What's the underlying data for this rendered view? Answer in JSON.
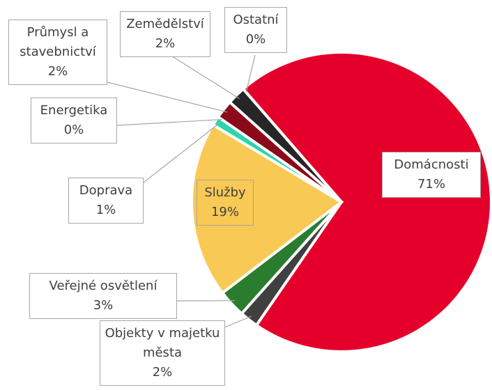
{
  "chart_data": {
    "type": "pie",
    "categories": [
      "Domácnosti",
      "Objekty v majetku města",
      "Veřejné osvětlení",
      "Služby",
      "Doprava",
      "Energetika",
      "Průmysl a stavebnictví",
      "Zemědělství",
      "Ostatní"
    ],
    "values": [
      71,
      2,
      3,
      19,
      1,
      0,
      2,
      2,
      0
    ],
    "value_labels": [
      "71%",
      "2%",
      "3%",
      "19%",
      "1%",
      "0%",
      "2%",
      "2%",
      "0%"
    ],
    "colors": [
      "#e4002b",
      "#404040",
      "#2a7d2e",
      "#f9c955",
      "#2dd4ac",
      "#20b28f",
      "#8b0a1a",
      "#262626",
      "#595959"
    ]
  }
}
